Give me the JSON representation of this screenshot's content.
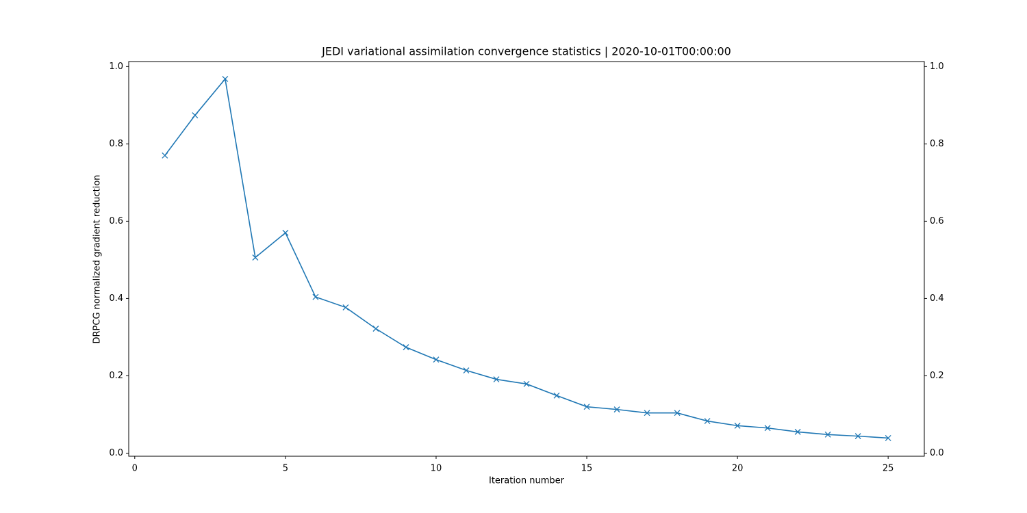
{
  "chart_data": {
    "type": "line",
    "title": "JEDI variational assimilation convergence statistics | 2020-10-01T00:00:00",
    "xlabel": "Iteration number",
    "ylabel": "DRPCG normalized gradient reduction",
    "x": [
      1,
      2,
      3,
      4,
      5,
      6,
      7,
      8,
      9,
      10,
      11,
      12,
      13,
      14,
      15,
      16,
      17,
      18,
      19,
      20,
      21,
      22,
      23,
      24,
      25
    ],
    "series": [
      {
        "color": "#1f77b4",
        "marker": "x",
        "values": [
          0.77,
          0.874,
          0.968,
          0.506,
          0.57,
          0.404,
          0.377,
          0.322,
          0.274,
          0.242,
          0.214,
          0.191,
          0.179,
          0.149,
          0.12,
          0.113,
          0.104,
          0.104,
          0.083,
          0.071,
          0.065,
          0.055,
          0.048,
          0.044,
          0.039
        ]
      }
    ],
    "xlim": [
      -0.2,
      26.2
    ],
    "xticks": [
      0,
      5,
      10,
      15,
      20,
      25
    ],
    "ylim": [
      -0.008,
      1.013
    ],
    "yticks": [
      {
        "value": 0,
        "label": "0.0"
      },
      0.2,
      0.4,
      0.6,
      0.8,
      {
        "value": 1,
        "label": "1.0"
      }
    ],
    "y2lim": [
      -0.008,
      1.013
    ],
    "y2ticks": [
      {
        "value": 0,
        "label": "0.0"
      },
      0.2,
      0.4,
      0.6,
      0.8,
      {
        "value": 1,
        "label": "1.0"
      }
    ],
    "grid": false
  }
}
